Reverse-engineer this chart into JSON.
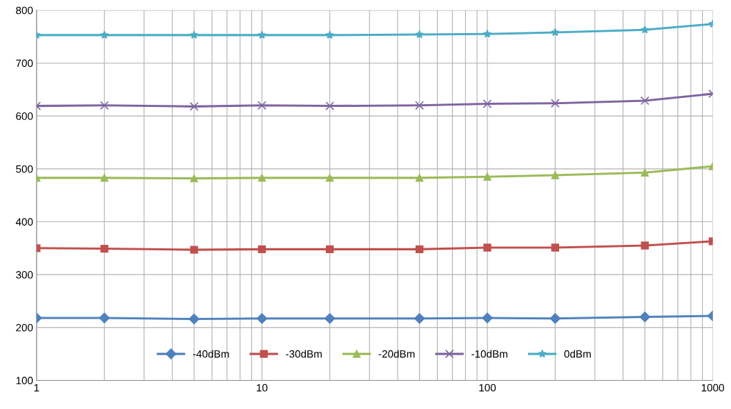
{
  "chart_data": {
    "type": "line",
    "log": "x",
    "x": [
      1,
      2,
      5,
      10,
      20,
      50,
      100,
      200,
      500,
      1000
    ],
    "xlim": [
      1,
      1000
    ],
    "xticks": [
      1,
      10,
      100,
      1000
    ],
    "ylim": [
      100,
      800
    ],
    "yticks": [
      100,
      200,
      300,
      400,
      500,
      600,
      700,
      800
    ],
    "grid": true,
    "legend": "bottom",
    "series": [
      {
        "name": "-40dBm",
        "color": "#4f81bd",
        "marker": "diamond",
        "values": [
          218,
          218,
          216,
          217,
          217,
          217,
          218,
          217,
          220,
          222
        ]
      },
      {
        "name": "-30dBm",
        "color": "#c0504d",
        "marker": "square",
        "values": [
          350,
          349,
          347,
          348,
          348,
          348,
          351,
          351,
          355,
          363
        ]
      },
      {
        "name": "-20dBm",
        "color": "#9bbb59",
        "marker": "triangle",
        "values": [
          483,
          483,
          482,
          483,
          483,
          483,
          485,
          488,
          493,
          505
        ]
      },
      {
        "name": "-10dBm",
        "color": "#8064a2",
        "marker": "cross",
        "values": [
          619,
          620,
          618,
          620,
          619,
          620,
          623,
          624,
          629,
          642
        ]
      },
      {
        "name": "0dBm",
        "color": "#4bacc6",
        "marker": "star",
        "values": [
          753,
          753,
          753,
          753,
          753,
          754,
          755,
          758,
          763,
          774
        ]
      }
    ]
  }
}
